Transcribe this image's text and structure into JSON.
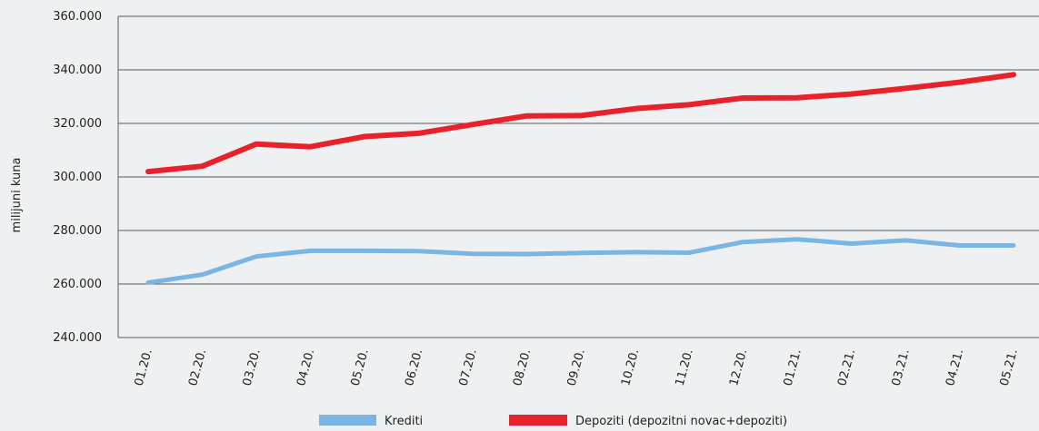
{
  "chart_data": {
    "type": "line",
    "title": "",
    "xlabel": "",
    "ylabel": "milijuni kuna",
    "categories": [
      "01.20.",
      "02.20.",
      "03.20.",
      "04.20.",
      "05.20.",
      "06.20.",
      "07.20.",
      "08.20.",
      "09.20.",
      "10.20.",
      "11.20.",
      "12.20.",
      "01.21.",
      "02.21.",
      "03.21.",
      "04.21.",
      "05.21."
    ],
    "ylim": [
      240000,
      360000
    ],
    "yticks": [
      240000,
      260000,
      280000,
      300000,
      320000,
      340000,
      360000
    ],
    "ytick_labels": [
      "240.000",
      "260.000",
      "280.000",
      "300.000",
      "320.000",
      "340.000",
      "360.000"
    ],
    "grid": "horizontal",
    "legend_position": "bottom",
    "series": [
      {
        "name": "Krediti",
        "color": "#7ab6e3",
        "values": [
          260500,
          263500,
          270300,
          272400,
          272400,
          272300,
          271300,
          271200,
          271600,
          271900,
          271700,
          275700,
          276700,
          275100,
          276300,
          274400,
          274400
        ]
      },
      {
        "name": "Depoziti (depozitni novac+depoziti)",
        "color": "#e8212a",
        "values": [
          302000,
          304000,
          312300,
          311300,
          315100,
          316300,
          319600,
          322800,
          322900,
          325500,
          327000,
          329500,
          329600,
          331000,
          333100,
          335400,
          338200
        ]
      }
    ]
  }
}
